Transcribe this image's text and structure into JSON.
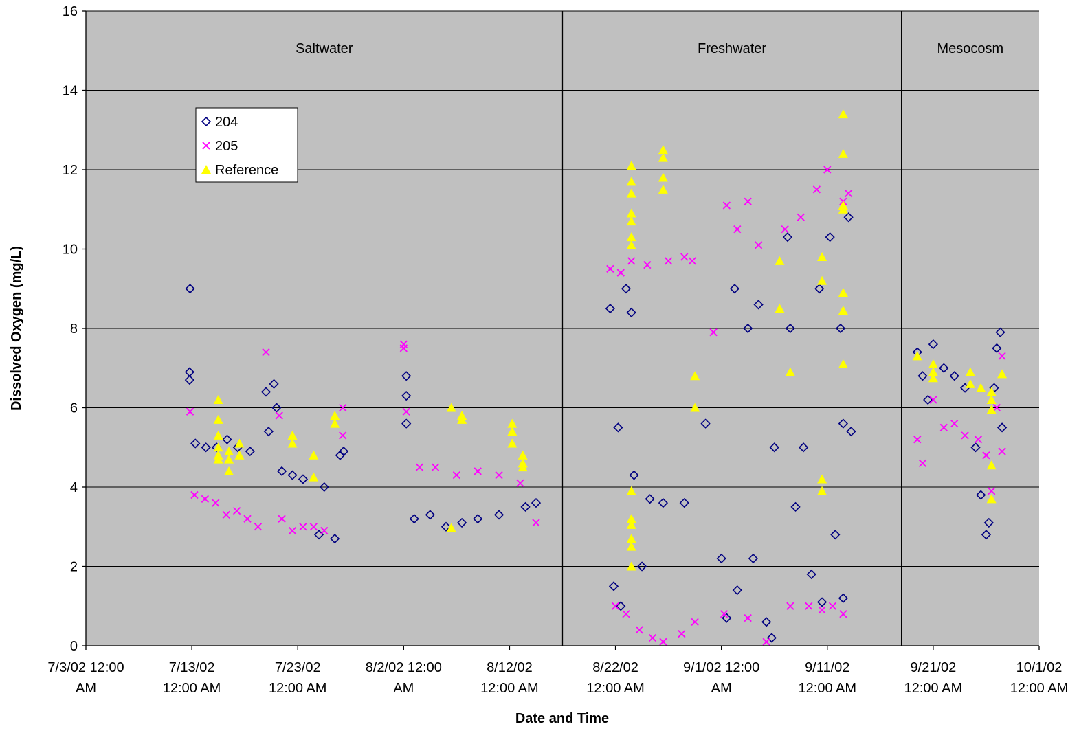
{
  "chart_data": {
    "type": "scatter",
    "title": "",
    "xlabel": "Date and Time",
    "ylabel": "Dissolved Oxygen (mg/L)",
    "ylim": [
      0,
      16
    ],
    "yticks": [
      "0",
      "2",
      "4",
      "6",
      "8",
      "10",
      "12",
      "14",
      "16"
    ],
    "xlim": [
      "2002-07-03",
      "2002-10-01"
    ],
    "xticks": [
      {
        "date": "2002-07-03",
        "line1": "7/3/02 12:00",
        "line2": "AM"
      },
      {
        "date": "2002-07-13",
        "line1": "7/13/02",
        "line2": "12:00 AM"
      },
      {
        "date": "2002-07-23",
        "line1": "7/23/02",
        "line2": "12:00 AM"
      },
      {
        "date": "2002-08-02",
        "line1": "8/2/02 12:00",
        "line2": "AM"
      },
      {
        "date": "2002-08-12",
        "line1": "8/12/02",
        "line2": "12:00 AM"
      },
      {
        "date": "2002-08-22",
        "line1": "8/22/02",
        "line2": "12:00 AM"
      },
      {
        "date": "2002-09-01",
        "line1": "9/1/02 12:00",
        "line2": "AM"
      },
      {
        "date": "2002-09-11",
        "line1": "9/11/02",
        "line2": "12:00 AM"
      },
      {
        "date": "2002-09-21",
        "line1": "9/21/02",
        "line2": "12:00 AM"
      },
      {
        "date": "2002-10-01",
        "line1": "10/1/02",
        "line2": "12:00 AM"
      }
    ],
    "grid": "horizontal",
    "plot_background": "#c0c0c0",
    "legend": {
      "placement": "upper-left"
    },
    "regions": [
      {
        "label": "Saltwater",
        "start": "2002-07-03",
        "end": "2002-08-17"
      },
      {
        "label": "Freshwater",
        "start": "2002-08-17",
        "end": "2002-09-18"
      },
      {
        "label": "Mesocosm",
        "start": "2002-09-18",
        "end": "2002-10-01"
      }
    ],
    "series": [
      {
        "name": "204",
        "marker": "diamond-open",
        "color": "#000080",
        "points": [
          [
            "2002-07-12T20:00",
            9.0
          ],
          [
            "2002-07-12T19:00",
            6.9
          ],
          [
            "2002-07-12T19:00",
            6.7
          ],
          [
            "2002-07-13T08:00",
            5.1
          ],
          [
            "2002-07-14T08:00",
            5.0
          ],
          [
            "2002-07-15T08:00",
            5.0
          ],
          [
            "2002-07-16T08:00",
            5.2
          ],
          [
            "2002-07-17T08:00",
            5.0
          ],
          [
            "2002-07-18T12:00",
            4.9
          ],
          [
            "2002-07-20T00:00",
            6.4
          ],
          [
            "2002-07-20T06:00",
            5.4
          ],
          [
            "2002-07-20T18:00",
            6.6
          ],
          [
            "2002-07-21T00:00",
            6.0
          ],
          [
            "2002-07-21T12:00",
            4.4
          ],
          [
            "2002-07-22T12:00",
            4.3
          ],
          [
            "2002-07-23T12:00",
            4.2
          ],
          [
            "2002-07-25T12:00",
            4.0
          ],
          [
            "2002-07-26T12:00",
            2.7
          ],
          [
            "2002-07-27T00:00",
            4.8
          ],
          [
            "2002-07-27T08:00",
            4.9
          ],
          [
            "2002-07-25T00:00",
            2.8
          ],
          [
            "2002-08-02T06:00",
            6.8
          ],
          [
            "2002-08-02T06:00",
            6.3
          ],
          [
            "2002-08-02T06:00",
            5.6
          ],
          [
            "2002-08-03T00:00",
            3.2
          ],
          [
            "2002-08-04T12:00",
            3.3
          ],
          [
            "2002-08-06T00:00",
            3.0
          ],
          [
            "2002-08-07T12:00",
            3.1
          ],
          [
            "2002-08-09T00:00",
            3.2
          ],
          [
            "2002-08-11T00:00",
            3.3
          ],
          [
            "2002-08-13T12:00",
            3.5
          ],
          [
            "2002-08-14T12:00",
            3.6
          ],
          [
            "2002-08-21T12:00",
            8.5
          ],
          [
            "2002-08-21T20:00",
            1.5
          ],
          [
            "2002-08-22T06:00",
            5.5
          ],
          [
            "2002-08-22T12:00",
            1.0
          ],
          [
            "2002-08-23T00:00",
            9.0
          ],
          [
            "2002-08-23T12:00",
            8.4
          ],
          [
            "2002-08-23T18:00",
            4.3
          ],
          [
            "2002-08-24T12:00",
            2.0
          ],
          [
            "2002-08-25T06:00",
            3.7
          ],
          [
            "2002-08-26T12:00",
            3.6
          ],
          [
            "2002-08-28T12:00",
            3.6
          ],
          [
            "2002-08-30T12:00",
            5.6
          ],
          [
            "2002-09-01T00:00",
            2.2
          ],
          [
            "2002-09-01T12:00",
            0.7
          ],
          [
            "2002-09-02T06:00",
            9.0
          ],
          [
            "2002-09-02T12:00",
            1.4
          ],
          [
            "2002-09-03T12:00",
            8.0
          ],
          [
            "2002-09-04T00:00",
            2.2
          ],
          [
            "2002-09-04T12:00",
            8.6
          ],
          [
            "2002-09-05T06:00",
            0.6
          ],
          [
            "2002-09-05T18:00",
            0.2
          ],
          [
            "2002-09-06T00:00",
            5.0
          ],
          [
            "2002-09-07T06:00",
            10.3
          ],
          [
            "2002-09-07T12:00",
            8.0
          ],
          [
            "2002-09-08T00:00",
            3.5
          ],
          [
            "2002-09-08T18:00",
            5.0
          ],
          [
            "2002-09-09T12:00",
            1.8
          ],
          [
            "2002-09-10T06:00",
            9.0
          ],
          [
            "2002-09-10T12:00",
            1.1
          ],
          [
            "2002-09-11T06:00",
            10.3
          ],
          [
            "2002-09-11T18:00",
            2.8
          ],
          [
            "2002-09-12T06:00",
            8.0
          ],
          [
            "2002-09-12T12:00",
            5.6
          ],
          [
            "2002-09-12T12:00",
            1.2
          ],
          [
            "2002-09-13T00:00",
            10.8
          ],
          [
            "2002-09-13T06:00",
            5.4
          ],
          [
            "2002-09-19T12:00",
            7.4
          ],
          [
            "2002-09-20T00:00",
            6.8
          ],
          [
            "2002-09-20T12:00",
            6.2
          ],
          [
            "2002-09-21T00:00",
            7.6
          ],
          [
            "2002-09-22T00:00",
            7.0
          ],
          [
            "2002-09-23T00:00",
            6.8
          ],
          [
            "2002-09-24T00:00",
            6.5
          ],
          [
            "2002-09-25T00:00",
            5.0
          ],
          [
            "2002-09-25T12:00",
            3.8
          ],
          [
            "2002-09-26T00:00",
            2.8
          ],
          [
            "2002-09-26T06:00",
            3.1
          ],
          [
            "2002-09-26T18:00",
            6.5
          ],
          [
            "2002-09-27T00:00",
            7.5
          ],
          [
            "2002-09-27T08:00",
            7.9
          ],
          [
            "2002-09-27T12:00",
            5.5
          ]
        ]
      },
      {
        "name": "205",
        "marker": "x",
        "color": "#ff00ff",
        "points": [
          [
            "2002-07-12T20:00",
            5.9
          ],
          [
            "2002-07-13T06:00",
            3.8
          ],
          [
            "2002-07-14T06:00",
            3.7
          ],
          [
            "2002-07-15T06:00",
            3.6
          ],
          [
            "2002-07-16T06:00",
            3.3
          ],
          [
            "2002-07-17T06:00",
            3.4
          ],
          [
            "2002-07-18T06:00",
            3.2
          ],
          [
            "2002-07-19T06:00",
            3.0
          ],
          [
            "2002-07-20T00:00",
            7.4
          ],
          [
            "2002-07-21T06:00",
            5.8
          ],
          [
            "2002-07-21T12:00",
            3.2
          ],
          [
            "2002-07-22T12:00",
            2.9
          ],
          [
            "2002-07-23T12:00",
            3.0
          ],
          [
            "2002-07-24T12:00",
            3.0
          ],
          [
            "2002-07-25T12:00",
            2.9
          ],
          [
            "2002-07-27T06:00",
            6.0
          ],
          [
            "2002-07-27T06:00",
            5.3
          ],
          [
            "2002-08-02T00:00",
            7.6
          ],
          [
            "2002-08-02T00:00",
            7.5
          ],
          [
            "2002-08-02T06:00",
            5.9
          ],
          [
            "2002-08-03T12:00",
            4.5
          ],
          [
            "2002-08-05T00:00",
            4.5
          ],
          [
            "2002-08-07T00:00",
            4.3
          ],
          [
            "2002-08-09T00:00",
            4.4
          ],
          [
            "2002-08-11T00:00",
            4.3
          ],
          [
            "2002-08-13T00:00",
            4.1
          ],
          [
            "2002-08-14T12:00",
            3.1
          ],
          [
            "2002-08-21T12:00",
            9.5
          ],
          [
            "2002-08-22T00:00",
            1.0
          ],
          [
            "2002-08-22T12:00",
            9.4
          ],
          [
            "2002-08-23T00:00",
            0.8
          ],
          [
            "2002-08-23T12:00",
            9.7
          ],
          [
            "2002-08-24T06:00",
            0.4
          ],
          [
            "2002-08-25T00:00",
            9.6
          ],
          [
            "2002-08-25T12:00",
            0.2
          ],
          [
            "2002-08-26T12:00",
            0.1
          ],
          [
            "2002-08-27T00:00",
            9.7
          ],
          [
            "2002-08-28T06:00",
            0.3
          ],
          [
            "2002-08-28T12:00",
            9.8
          ],
          [
            "2002-08-29T06:00",
            9.7
          ],
          [
            "2002-08-29T12:00",
            0.6
          ],
          [
            "2002-08-31T06:00",
            7.9
          ],
          [
            "2002-09-01T06:00",
            0.8
          ],
          [
            "2002-09-01T12:00",
            11.1
          ],
          [
            "2002-09-02T12:00",
            10.5
          ],
          [
            "2002-09-03T12:00",
            11.2
          ],
          [
            "2002-09-03T12:00",
            0.7
          ],
          [
            "2002-09-04T12:00",
            10.1
          ],
          [
            "2002-09-05T06:00",
            0.1
          ],
          [
            "2002-09-07T00:00",
            10.5
          ],
          [
            "2002-09-07T12:00",
            1.0
          ],
          [
            "2002-09-08T12:00",
            10.8
          ],
          [
            "2002-09-09T06:00",
            1.0
          ],
          [
            "2002-09-10T00:00",
            11.5
          ],
          [
            "2002-09-10T12:00",
            0.9
          ],
          [
            "2002-09-11T00:00",
            12.0
          ],
          [
            "2002-09-11T12:00",
            1.0
          ],
          [
            "2002-09-12T12:00",
            11.2
          ],
          [
            "2002-09-12T12:00",
            0.8
          ],
          [
            "2002-09-13T00:00",
            11.4
          ],
          [
            "2002-09-19T12:00",
            5.2
          ],
          [
            "2002-09-20T00:00",
            4.6
          ],
          [
            "2002-09-21T00:00",
            6.2
          ],
          [
            "2002-09-22T00:00",
            5.5
          ],
          [
            "2002-09-23T00:00",
            5.6
          ],
          [
            "2002-09-24T00:00",
            5.3
          ],
          [
            "2002-09-25T06:00",
            5.2
          ],
          [
            "2002-09-26T00:00",
            4.8
          ],
          [
            "2002-09-26T12:00",
            3.9
          ],
          [
            "2002-09-27T00:00",
            6.0
          ],
          [
            "2002-09-27T12:00",
            7.3
          ],
          [
            "2002-09-27T12:00",
            4.9
          ]
        ]
      },
      {
        "name": "Reference",
        "marker": "triangle-filled",
        "color": "#ffff00",
        "points": [
          [
            "2002-07-15T12:00",
            6.2
          ],
          [
            "2002-07-15T12:00",
            5.7
          ],
          [
            "2002-07-15T12:00",
            5.3
          ],
          [
            "2002-07-15T12:00",
            5.0
          ],
          [
            "2002-07-15T12:00",
            4.8
          ],
          [
            "2002-07-15T12:00",
            4.7
          ],
          [
            "2002-07-16T12:00",
            4.9
          ],
          [
            "2002-07-16T12:00",
            4.7
          ],
          [
            "2002-07-16T12:00",
            4.4
          ],
          [
            "2002-07-17T12:00",
            5.1
          ],
          [
            "2002-07-17T12:00",
            4.8
          ],
          [
            "2002-07-22T12:00",
            5.3
          ],
          [
            "2002-07-22T12:00",
            5.1
          ],
          [
            "2002-07-24T12:00",
            4.8
          ],
          [
            "2002-07-24T12:00",
            4.25
          ],
          [
            "2002-07-26T12:00",
            5.8
          ],
          [
            "2002-07-26T12:00",
            5.6
          ],
          [
            "2002-08-06T12:00",
            6.0
          ],
          [
            "2002-08-06T12:00",
            2.97
          ],
          [
            "2002-08-07T12:00",
            5.8
          ],
          [
            "2002-08-07T12:00",
            5.7
          ],
          [
            "2002-08-12T06:00",
            5.6
          ],
          [
            "2002-08-12T06:00",
            5.4
          ],
          [
            "2002-08-12T06:00",
            5.1
          ],
          [
            "2002-08-13T06:00",
            4.8
          ],
          [
            "2002-08-13T06:00",
            4.6
          ],
          [
            "2002-08-13T06:00",
            4.5
          ],
          [
            "2002-08-23T12:00",
            12.1
          ],
          [
            "2002-08-23T12:00",
            11.7
          ],
          [
            "2002-08-23T12:00",
            11.4
          ],
          [
            "2002-08-23T12:00",
            10.9
          ],
          [
            "2002-08-23T12:00",
            10.7
          ],
          [
            "2002-08-23T12:00",
            10.3
          ],
          [
            "2002-08-23T12:00",
            10.1
          ],
          [
            "2002-08-23T12:00",
            3.9
          ],
          [
            "2002-08-23T12:00",
            3.2
          ],
          [
            "2002-08-23T12:00",
            3.05
          ],
          [
            "2002-08-23T12:00",
            2.7
          ],
          [
            "2002-08-23T12:00",
            2.5
          ],
          [
            "2002-08-23T12:00",
            2.0
          ],
          [
            "2002-08-26T12:00",
            12.5
          ],
          [
            "2002-08-26T12:00",
            12.3
          ],
          [
            "2002-08-26T12:00",
            11.8
          ],
          [
            "2002-08-26T12:00",
            11.5
          ],
          [
            "2002-08-29T12:00",
            6.8
          ],
          [
            "2002-08-29T12:00",
            6.0
          ],
          [
            "2002-09-06T12:00",
            9.7
          ],
          [
            "2002-09-06T12:00",
            8.5
          ],
          [
            "2002-09-07T12:00",
            6.9
          ],
          [
            "2002-09-10T12:00",
            9.8
          ],
          [
            "2002-09-10T12:00",
            9.2
          ],
          [
            "2002-09-10T12:00",
            4.2
          ],
          [
            "2002-09-10T12:00",
            3.9
          ],
          [
            "2002-09-12T12:00",
            13.4
          ],
          [
            "2002-09-12T12:00",
            12.4
          ],
          [
            "2002-09-12T12:00",
            11.1
          ],
          [
            "2002-09-12T12:00",
            11.0
          ],
          [
            "2002-09-12T12:00",
            8.9
          ],
          [
            "2002-09-12T12:00",
            8.45
          ],
          [
            "2002-09-12T12:00",
            7.1
          ],
          [
            "2002-09-19T12:00",
            7.3
          ],
          [
            "2002-09-21T00:00",
            7.1
          ],
          [
            "2002-09-21T00:00",
            6.9
          ],
          [
            "2002-09-21T00:00",
            6.75
          ],
          [
            "2002-09-24T12:00",
            6.9
          ],
          [
            "2002-09-24T12:00",
            6.6
          ],
          [
            "2002-09-25T12:00",
            6.5
          ],
          [
            "2002-09-26T12:00",
            6.4
          ],
          [
            "2002-09-26T12:00",
            6.2
          ],
          [
            "2002-09-26T12:00",
            5.95
          ],
          [
            "2002-09-26T12:00",
            4.55
          ],
          [
            "2002-09-26T12:00",
            3.7
          ],
          [
            "2002-09-27T12:00",
            6.85
          ]
        ]
      }
    ]
  }
}
